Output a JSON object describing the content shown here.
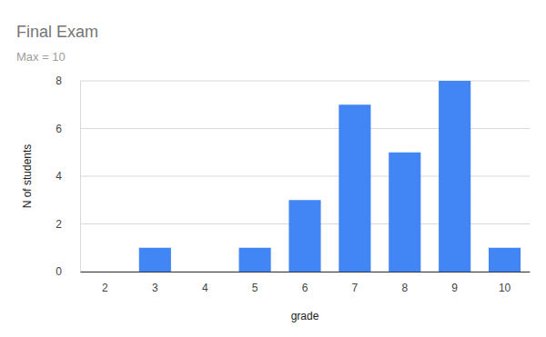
{
  "chart_data": {
    "type": "bar",
    "title": "Final Exam",
    "subtitle": "Max = 10",
    "x_label": "grade",
    "y_label": "N of students",
    "categories": [
      "2",
      "3",
      "4",
      "5",
      "6",
      "7",
      "8",
      "9",
      "10"
    ],
    "values": [
      0,
      1,
      0,
      1,
      3,
      7,
      5,
      8,
      1
    ],
    "color": "#4285f4",
    "ylim": [
      0,
      8
    ],
    "yticks": [
      0,
      2,
      4,
      6,
      8
    ],
    "grid": true
  }
}
